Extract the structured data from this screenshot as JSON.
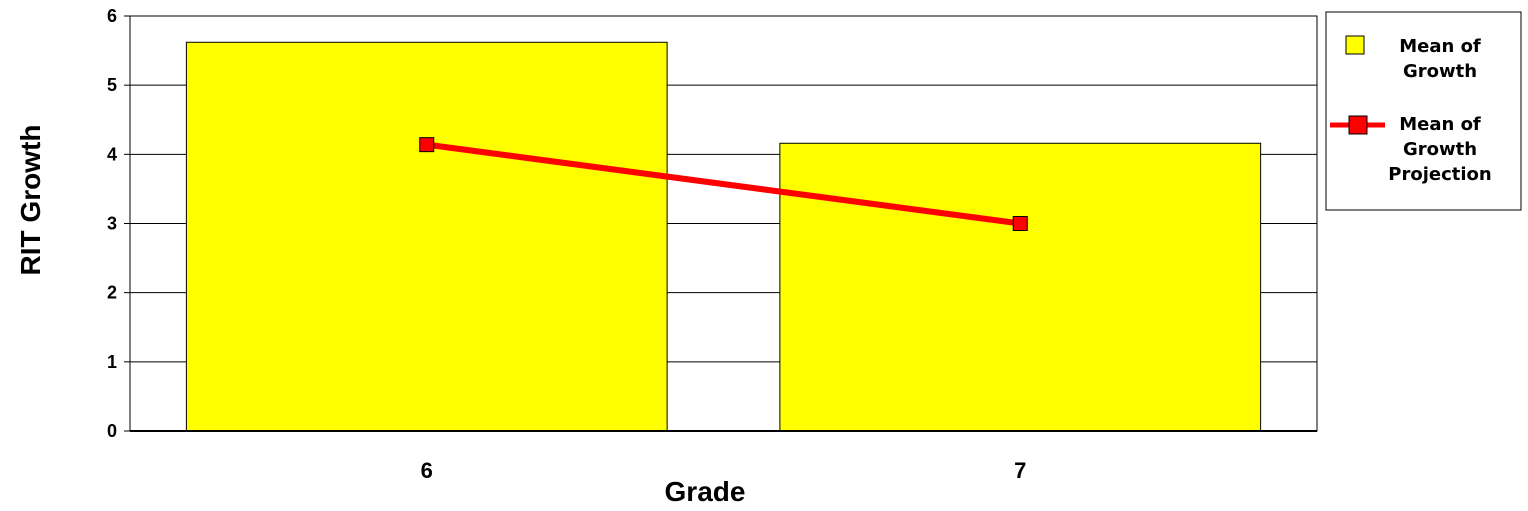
{
  "chart_data": {
    "type": "bar",
    "categories": [
      "6",
      "7"
    ],
    "series": [
      {
        "name": "Mean of Growth",
        "kind": "bar",
        "values": [
          5.62,
          4.16
        ],
        "color": "#ffff00"
      },
      {
        "name": "Mean of Growth Projection",
        "kind": "line",
        "values": [
          4.14,
          3.0
        ],
        "color": "#ff0000"
      }
    ],
    "title": "",
    "xlabel": "Grade",
    "ylabel": "RIT Growth",
    "ylim": [
      0,
      6
    ],
    "yticks": [
      "0",
      "1",
      "2",
      "3",
      "4",
      "5",
      "6"
    ],
    "grid": true,
    "legend_position": "right",
    "legend_lines": [
      [
        "Mean of",
        "Growth"
      ],
      [
        "Mean of",
        "Growth",
        "Projection"
      ]
    ]
  }
}
